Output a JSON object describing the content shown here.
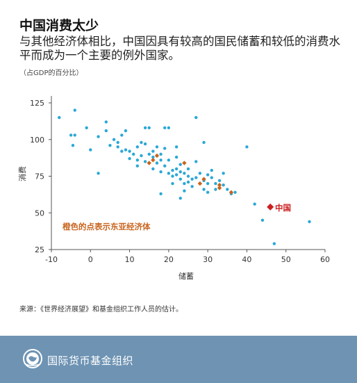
{
  "header": {
    "title": "中国消费太少",
    "subtitle": "与其他经济体相比，中国因具有较高的国民储蓄和较低的消费水平而成为一个主要的例外国家。",
    "unit": "（占GDP的百分比）"
  },
  "chart_data": {
    "type": "scatter",
    "xlabel": "储蓄",
    "ylabel": "消费",
    "xlim": [
      -10,
      60
    ],
    "ylim": [
      25,
      125
    ],
    "xticks": [
      -10,
      0,
      10,
      20,
      30,
      40,
      50,
      60
    ],
    "yticks": [
      25,
      50,
      75,
      100,
      125
    ],
    "grid": false,
    "colors": {
      "other": "#2aa8d6",
      "east_asia": "#c8641e",
      "china": "#cc1f1f"
    },
    "annotation": "橙色的点表示东亚经济体",
    "china_label": "中国",
    "series": [
      {
        "id": "other",
        "points": [
          [
            -8,
            115
          ],
          [
            -5,
            103
          ],
          [
            -4,
            103
          ],
          [
            -4.5,
            96
          ],
          [
            -4,
            120
          ],
          [
            -1,
            108
          ],
          [
            0,
            93
          ],
          [
            2,
            102
          ],
          [
            2,
            77
          ],
          [
            4,
            106
          ],
          [
            5,
            96
          ],
          [
            4,
            112
          ],
          [
            6,
            100
          ],
          [
            7,
            98
          ],
          [
            7,
            95
          ],
          [
            8,
            92
          ],
          [
            9,
            93
          ],
          [
            10,
            92
          ],
          [
            10,
            87
          ],
          [
            9,
            106
          ],
          [
            8,
            103
          ],
          [
            11,
            90
          ],
          [
            12,
            86
          ],
          [
            12,
            95
          ],
          [
            13,
            98
          ],
          [
            13,
            89
          ],
          [
            12,
            82
          ],
          [
            14,
            97
          ],
          [
            14,
            108
          ],
          [
            15,
            108
          ],
          [
            15,
            90
          ],
          [
            14,
            85
          ],
          [
            16,
            92
          ],
          [
            16,
            88
          ],
          [
            16,
            80
          ],
          [
            17,
            95
          ],
          [
            17,
            84
          ],
          [
            18,
            90
          ],
          [
            18,
            86
          ],
          [
            18,
            78
          ],
          [
            19,
            108
          ],
          [
            19,
            94
          ],
          [
            20,
            108
          ],
          [
            19,
            82
          ],
          [
            20,
            86
          ],
          [
            20,
            77
          ],
          [
            21,
            79
          ],
          [
            21,
            75
          ],
          [
            21,
            70
          ],
          [
            22,
            88
          ],
          [
            22,
            95
          ],
          [
            22,
            76
          ],
          [
            22,
            80
          ],
          [
            23,
            78
          ],
          [
            23,
            73
          ],
          [
            24,
            77
          ],
          [
            24,
            70
          ],
          [
            23,
            83
          ],
          [
            25,
            75
          ],
          [
            25,
            80
          ],
          [
            25,
            71
          ],
          [
            24,
            65
          ],
          [
            26,
            73
          ],
          [
            26,
            68
          ],
          [
            23,
            60
          ],
          [
            27,
            74
          ],
          [
            27,
            85
          ],
          [
            28,
            70
          ],
          [
            28,
            77
          ],
          [
            29,
            72
          ],
          [
            29,
            66
          ],
          [
            30,
            76
          ],
          [
            30,
            70
          ],
          [
            30,
            64
          ],
          [
            31,
            74
          ],
          [
            31,
            79
          ],
          [
            32,
            70
          ],
          [
            32,
            66
          ],
          [
            33,
            72
          ],
          [
            34,
            69
          ],
          [
            35,
            66
          ],
          [
            36,
            63
          ],
          [
            37,
            64
          ],
          [
            34,
            77
          ],
          [
            27,
            115
          ],
          [
            29,
            98
          ],
          [
            40,
            95
          ],
          [
            42,
            56
          ],
          [
            44,
            45
          ],
          [
            47,
            29
          ],
          [
            56,
            44
          ],
          [
            18,
            63
          ]
        ]
      },
      {
        "id": "east_asia",
        "points": [
          [
            15,
            84
          ],
          [
            16,
            86
          ],
          [
            17,
            89
          ],
          [
            24,
            84
          ],
          [
            28,
            70
          ],
          [
            29,
            73
          ],
          [
            33,
            69
          ],
          [
            33,
            67
          ],
          [
            36,
            64
          ]
        ]
      },
      {
        "id": "china",
        "name": "中国",
        "points": [
          [
            46,
            54
          ]
        ]
      }
    ]
  },
  "source": "来源：《世界经济展望》和基金组织工作人员的估计。",
  "footer": {
    "org_name": "国际货币基金组织",
    "logo_icon": "imf-globe-logo-icon"
  }
}
